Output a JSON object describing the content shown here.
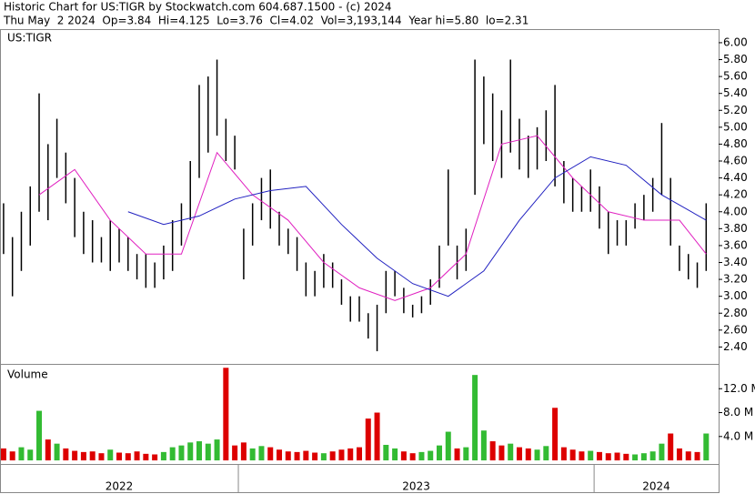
{
  "header": {
    "title": "Historic Chart for US:TIGR by Stockwatch.com 604.687.1500 - (c) 2024",
    "quote": "Thu May  2 2024  Op=3.84  Hi=4.125  Lo=3.76  Cl=4.02  Vol=3,193,144  Year hi=5.80  lo=2.31"
  },
  "chart_data": [
    {
      "type": "hilo",
      "title": "US:TIGR",
      "color": "#000000",
      "x": [
        2022.34,
        2022.365,
        2022.39,
        2022.415,
        2022.44,
        2022.465,
        2022.49,
        2022.515,
        2022.54,
        2022.565,
        2022.59,
        2022.615,
        2022.64,
        2022.665,
        2022.69,
        2022.715,
        2022.74,
        2022.765,
        2022.79,
        2022.815,
        2022.84,
        2022.865,
        2022.89,
        2022.915,
        2022.94,
        2022.965,
        2022.99,
        2023.015,
        2023.04,
        2023.065,
        2023.09,
        2023.115,
        2023.14,
        2023.165,
        2023.19,
        2023.215,
        2023.24,
        2023.265,
        2023.29,
        2023.315,
        2023.34,
        2023.365,
        2023.39,
        2023.415,
        2023.44,
        2023.465,
        2023.49,
        2023.515,
        2023.54,
        2023.565,
        2023.59,
        2023.615,
        2023.64,
        2023.665,
        2023.69,
        2023.715,
        2023.74,
        2023.765,
        2023.79,
        2023.815,
        2023.84,
        2023.865,
        2023.89,
        2023.915,
        2023.94,
        2023.965,
        2023.99,
        2024.015,
        2024.04,
        2024.065,
        2024.09,
        2024.115,
        2024.14,
        2024.165,
        2024.19,
        2024.215,
        2024.24,
        2024.265,
        2024.29,
        2024.315
      ],
      "high": [
        4.1,
        3.7,
        4.0,
        4.3,
        5.4,
        4.8,
        5.1,
        4.7,
        4.4,
        4.0,
        3.9,
        3.7,
        3.9,
        3.8,
        3.7,
        3.5,
        3.5,
        3.4,
        3.6,
        3.9,
        4.1,
        4.6,
        5.5,
        5.6,
        5.8,
        5.1,
        4.9,
        3.8,
        4.1,
        4.4,
        4.5,
        4.0,
        3.8,
        3.7,
        3.4,
        3.3,
        3.5,
        3.4,
        3.2,
        3.0,
        3.0,
        2.8,
        2.9,
        3.3,
        3.3,
        3.1,
        2.9,
        3.0,
        3.2,
        3.6,
        4.5,
        3.6,
        3.8,
        5.8,
        5.6,
        5.4,
        5.2,
        5.8,
        5.1,
        4.9,
        5.0,
        5.2,
        5.5,
        4.6,
        4.4,
        4.3,
        4.5,
        4.3,
        4.0,
        3.9,
        3.9,
        4.1,
        4.2,
        4.4,
        5.05,
        4.4,
        3.6,
        3.5,
        3.4,
        4.1
      ],
      "low": [
        3.5,
        3.0,
        3.3,
        3.6,
        4.0,
        3.9,
        4.4,
        4.1,
        3.7,
        3.5,
        3.4,
        3.4,
        3.3,
        3.4,
        3.3,
        3.2,
        3.1,
        3.1,
        3.2,
        3.3,
        3.6,
        3.9,
        4.4,
        4.7,
        4.9,
        4.6,
        4.5,
        3.2,
        3.6,
        3.9,
        3.8,
        3.6,
        3.5,
        3.3,
        3.0,
        3.0,
        3.1,
        3.1,
        2.9,
        2.7,
        2.7,
        2.5,
        2.35,
        2.8,
        3.0,
        2.8,
        2.75,
        2.8,
        2.9,
        3.1,
        3.6,
        3.2,
        3.3,
        4.2,
        4.8,
        4.6,
        4.4,
        4.7,
        4.5,
        4.4,
        4.5,
        4.6,
        4.3,
        4.1,
        4.0,
        4.0,
        4.0,
        3.8,
        3.5,
        3.6,
        3.6,
        3.8,
        3.9,
        4.0,
        4.2,
        3.6,
        3.3,
        3.2,
        3.1,
        3.3
      ],
      "lines": [
        {
          "color": "#e020c0",
          "x": [
            2022.44,
            2022.54,
            2022.64,
            2022.74,
            2022.84,
            2022.94,
            2023.04,
            2023.14,
            2023.24,
            2023.34,
            2023.44,
            2023.54,
            2023.64,
            2023.74,
            2023.84,
            2023.94,
            2024.04,
            2024.14,
            2024.24,
            2024.315
          ],
          "values": [
            4.2,
            4.5,
            3.9,
            3.5,
            3.5,
            4.7,
            4.2,
            3.9,
            3.4,
            3.1,
            2.95,
            3.1,
            3.5,
            4.8,
            4.9,
            4.4,
            4.0,
            3.9,
            3.9,
            3.5
          ]
        },
        {
          "color": "#2020c0",
          "x": [
            2022.69,
            2022.79,
            2022.89,
            2022.99,
            2023.09,
            2023.19,
            2023.29,
            2023.39,
            2023.49,
            2023.59,
            2023.69,
            2023.79,
            2023.89,
            2023.99,
            2024.09,
            2024.19,
            2024.315
          ],
          "values": [
            4.0,
            3.85,
            3.95,
            4.15,
            4.25,
            4.3,
            3.85,
            3.45,
            3.15,
            3.0,
            3.3,
            3.9,
            4.4,
            4.65,
            4.55,
            4.2,
            3.9
          ]
        }
      ],
      "xlim": [
        2022.33,
        2024.35
      ],
      "xticks": [
        {
          "value": 2022,
          "label": "2022"
        },
        {
          "value": 2023,
          "label": "2023"
        },
        {
          "value": 2024,
          "label": "2024"
        }
      ],
      "ylim": [
        2.2,
        6.15
      ],
      "yticks": [
        {
          "value": 2.4,
          "label": "2.40"
        },
        {
          "value": 2.6,
          "label": "2.60"
        },
        {
          "value": 2.8,
          "label": "2.80"
        },
        {
          "value": 3.0,
          "label": "3.00"
        },
        {
          "value": 3.2,
          "label": "3.20"
        },
        {
          "value": 3.4,
          "label": "3.40"
        },
        {
          "value": 3.6,
          "label": "3.60"
        },
        {
          "value": 3.8,
          "label": "3.80"
        },
        {
          "value": 4.0,
          "label": "4.00"
        },
        {
          "value": 4.2,
          "label": "4.20"
        },
        {
          "value": 4.4,
          "label": "4.40"
        },
        {
          "value": 4.6,
          "label": "4.60"
        },
        {
          "value": 4.8,
          "label": "4.80"
        },
        {
          "value": 5.0,
          "label": "5.00"
        },
        {
          "value": 5.2,
          "label": "5.20"
        },
        {
          "value": 5.4,
          "label": "5.40"
        },
        {
          "value": 5.6,
          "label": "5.60"
        },
        {
          "value": 5.8,
          "label": "5.80"
        },
        {
          "value": 6.0,
          "label": "6.00"
        }
      ]
    },
    {
      "type": "bar",
      "title": "Volume",
      "colors": [
        "#dd0000",
        "#33bb33"
      ],
      "values": [
        2.0,
        1.5,
        2.2,
        1.8,
        8.3,
        3.5,
        2.8,
        2.0,
        1.6,
        1.4,
        1.5,
        1.2,
        1.8,
        1.3,
        1.2,
        1.5,
        1.1,
        1.0,
        1.4,
        2.2,
        2.5,
        3.0,
        3.2,
        2.8,
        3.5,
        15.5,
        2.5,
        3.0,
        2.0,
        2.4,
        2.2,
        1.8,
        1.5,
        1.4,
        1.6,
        1.3,
        1.2,
        1.5,
        1.8,
        2.0,
        2.2,
        7.0,
        8.0,
        2.6,
        2.0,
        1.5,
        1.2,
        1.4,
        1.6,
        2.5,
        4.8,
        2.0,
        2.2,
        14.3,
        5.0,
        3.2,
        2.5,
        2.8,
        2.2,
        2.0,
        1.8,
        2.4,
        8.8,
        2.2,
        1.8,
        1.5,
        1.6,
        1.4,
        1.2,
        1.3,
        1.1,
        1.0,
        1.2,
        1.5,
        2.8,
        4.5,
        2.0,
        1.5,
        1.4,
        4.5
      ],
      "ylim": [
        -0.6,
        16
      ],
      "yticks": [
        {
          "value": 4,
          "label": "4.0 M"
        },
        {
          "value": 8,
          "label": "8.0 M"
        },
        {
          "value": 12,
          "label": "12.0 M"
        }
      ]
    }
  ]
}
